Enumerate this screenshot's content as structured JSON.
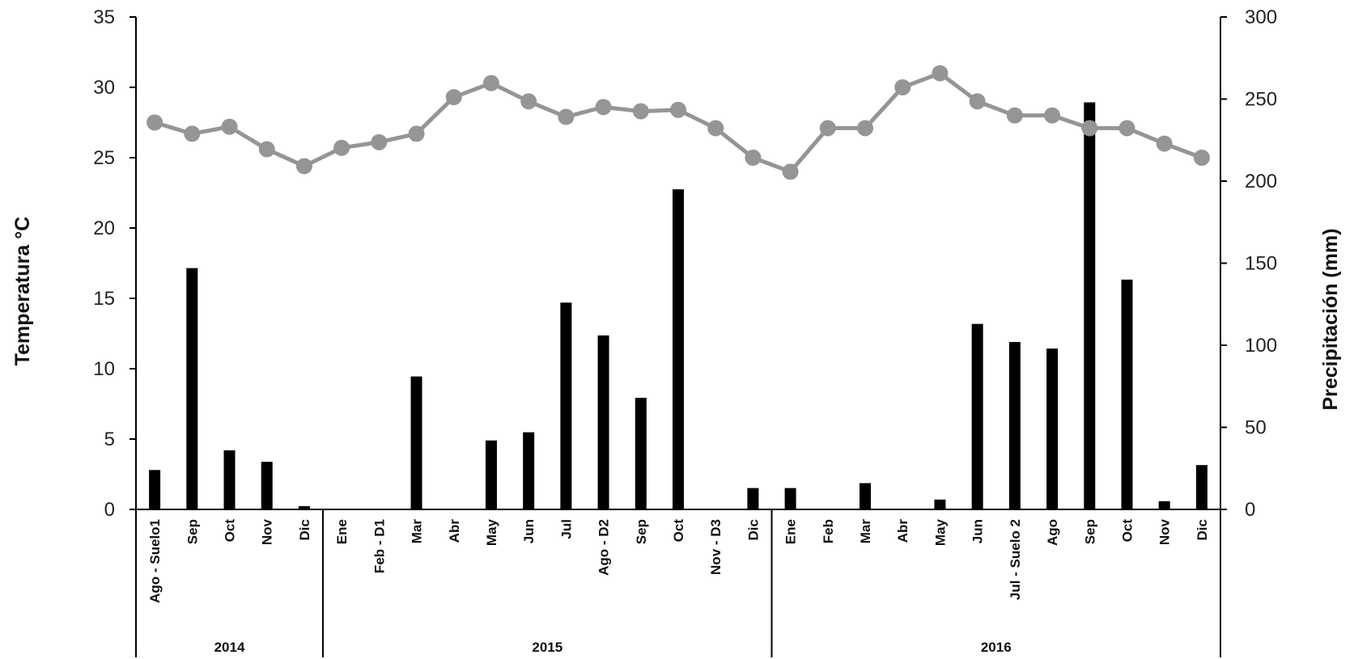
{
  "chart_data": {
    "type": "bar+line",
    "categories": [
      "Ago - Suelo1",
      "Sep",
      "Oct",
      "Nov",
      "Dic",
      "Ene",
      "Feb - D1",
      "Mar",
      "Abr",
      "May",
      "Jun",
      "Jul",
      "Ago - D2",
      "Sep",
      "Oct",
      "Nov - D3",
      "Dic",
      "Ene",
      "Feb",
      "Mar",
      "Abr",
      "May",
      "Jun",
      "Jul - Suelo 2",
      "Ago",
      "Sep",
      "Oct",
      "Nov",
      "Dic"
    ],
    "groups": [
      {
        "label": "2014",
        "start": 0,
        "count": 5
      },
      {
        "label": "2015",
        "start": 5,
        "count": 12
      },
      {
        "label": "2016",
        "start": 17,
        "count": 12
      }
    ],
    "series": [
      {
        "type": "bar",
        "axis": "right",
        "values": [
          24,
          147,
          36,
          29,
          2,
          0,
          0.5,
          81,
          0,
          42,
          47,
          126,
          106,
          68,
          195,
          0,
          13,
          13,
          0,
          16,
          0,
          6,
          113,
          102,
          98,
          248,
          140,
          5,
          27
        ]
      },
      {
        "type": "line",
        "axis": "left",
        "values": [
          27.5,
          26.7,
          27.2,
          25.6,
          24.4,
          25.7,
          26.1,
          26.7,
          29.3,
          30.3,
          29.0,
          27.9,
          28.6,
          28.3,
          28.4,
          27.1,
          25.0,
          24.0,
          27.1,
          27.1,
          30.0,
          31.0,
          29.0,
          28.0,
          28.0,
          27.1,
          27.1,
          26.0,
          25.0
        ]
      }
    ],
    "ylabel": "Temperatura °C",
    "y2label": "Precipitación (mm)",
    "ylim": [
      0,
      35
    ],
    "y2lim": [
      0,
      300
    ],
    "yticks": [
      "0",
      "5",
      "10",
      "15",
      "20",
      "25",
      "30",
      "35"
    ],
    "y2ticks": [
      "0",
      "50",
      "100",
      "150",
      "200",
      "250",
      "300"
    ],
    "colors": {
      "bars": "#000000",
      "line": "#959595",
      "axis": "#000000"
    }
  }
}
